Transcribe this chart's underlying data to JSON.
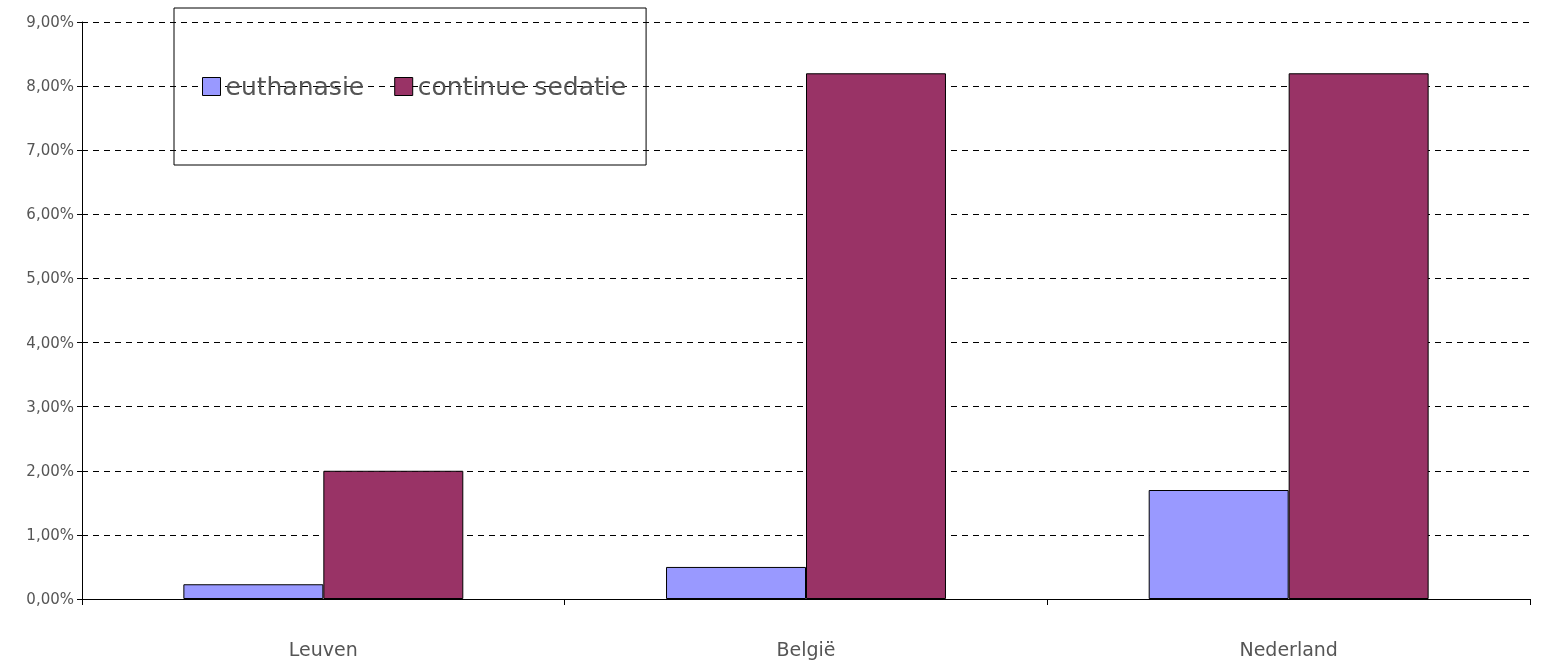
{
  "chart_data": {
    "type": "bar",
    "categories": [
      "Leuven",
      "België",
      "Nederland"
    ],
    "series": [
      {
        "name": "euthanasie",
        "color": "#9999ff",
        "values": [
          0.23,
          0.5,
          1.7
        ]
      },
      {
        "name": "continue sedatie",
        "color": "#993366",
        "values": [
          2.0,
          8.2,
          8.2
        ]
      }
    ],
    "ylim": [
      0,
      9
    ],
    "yticks": [
      {
        "value": 0,
        "label": "0,00%"
      },
      {
        "value": 1,
        "label": "1,00%"
      },
      {
        "value": 2,
        "label": "2,00%"
      },
      {
        "value": 3,
        "label": "3,00%"
      },
      {
        "value": 4,
        "label": "4,00%"
      },
      {
        "value": 5,
        "label": "5,00%"
      },
      {
        "value": 6,
        "label": "6,00%"
      },
      {
        "value": 7,
        "label": "7,00%"
      },
      {
        "value": 8,
        "label": "8,00%"
      },
      {
        "value": 9,
        "label": "9,00%"
      }
    ],
    "grid": "y",
    "legend": "top left"
  }
}
